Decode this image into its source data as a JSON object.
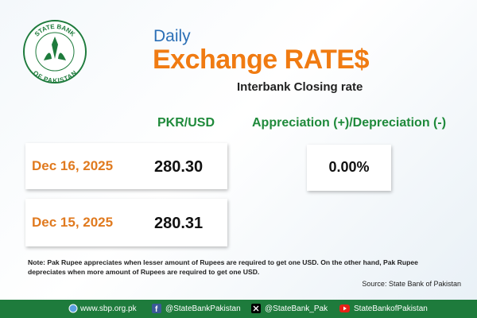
{
  "logo": {
    "top": "STATE BANK",
    "bottom": "OF PAKISTAN"
  },
  "header": {
    "kicker": "Daily",
    "title": "Exchange RATE$",
    "subtitle": "Interbank Closing rate"
  },
  "table": {
    "columns": [
      "PKR/USD",
      "Appreciation (+)/Depreciation (-)"
    ],
    "rows": [
      [
        "Dec 16, 2025",
        "280.30"
      ],
      [
        "Dec 15, 2025",
        "280.31"
      ]
    ],
    "change": "0.00%"
  },
  "note": [
    "Note: Pak Rupee appreciates when lesser amount of Rupees are required to get one USD.  On the other hand, Pak Rupee",
    "depreciates when more amount of Rupees are required to get one USD."
  ],
  "source": "Source: State Bank of Pakistan",
  "footer": [
    "www.sbp.org.pk",
    "@StateBankPakistan",
    "@StateBank_Pak",
    "StateBankofPakistan"
  ]
}
